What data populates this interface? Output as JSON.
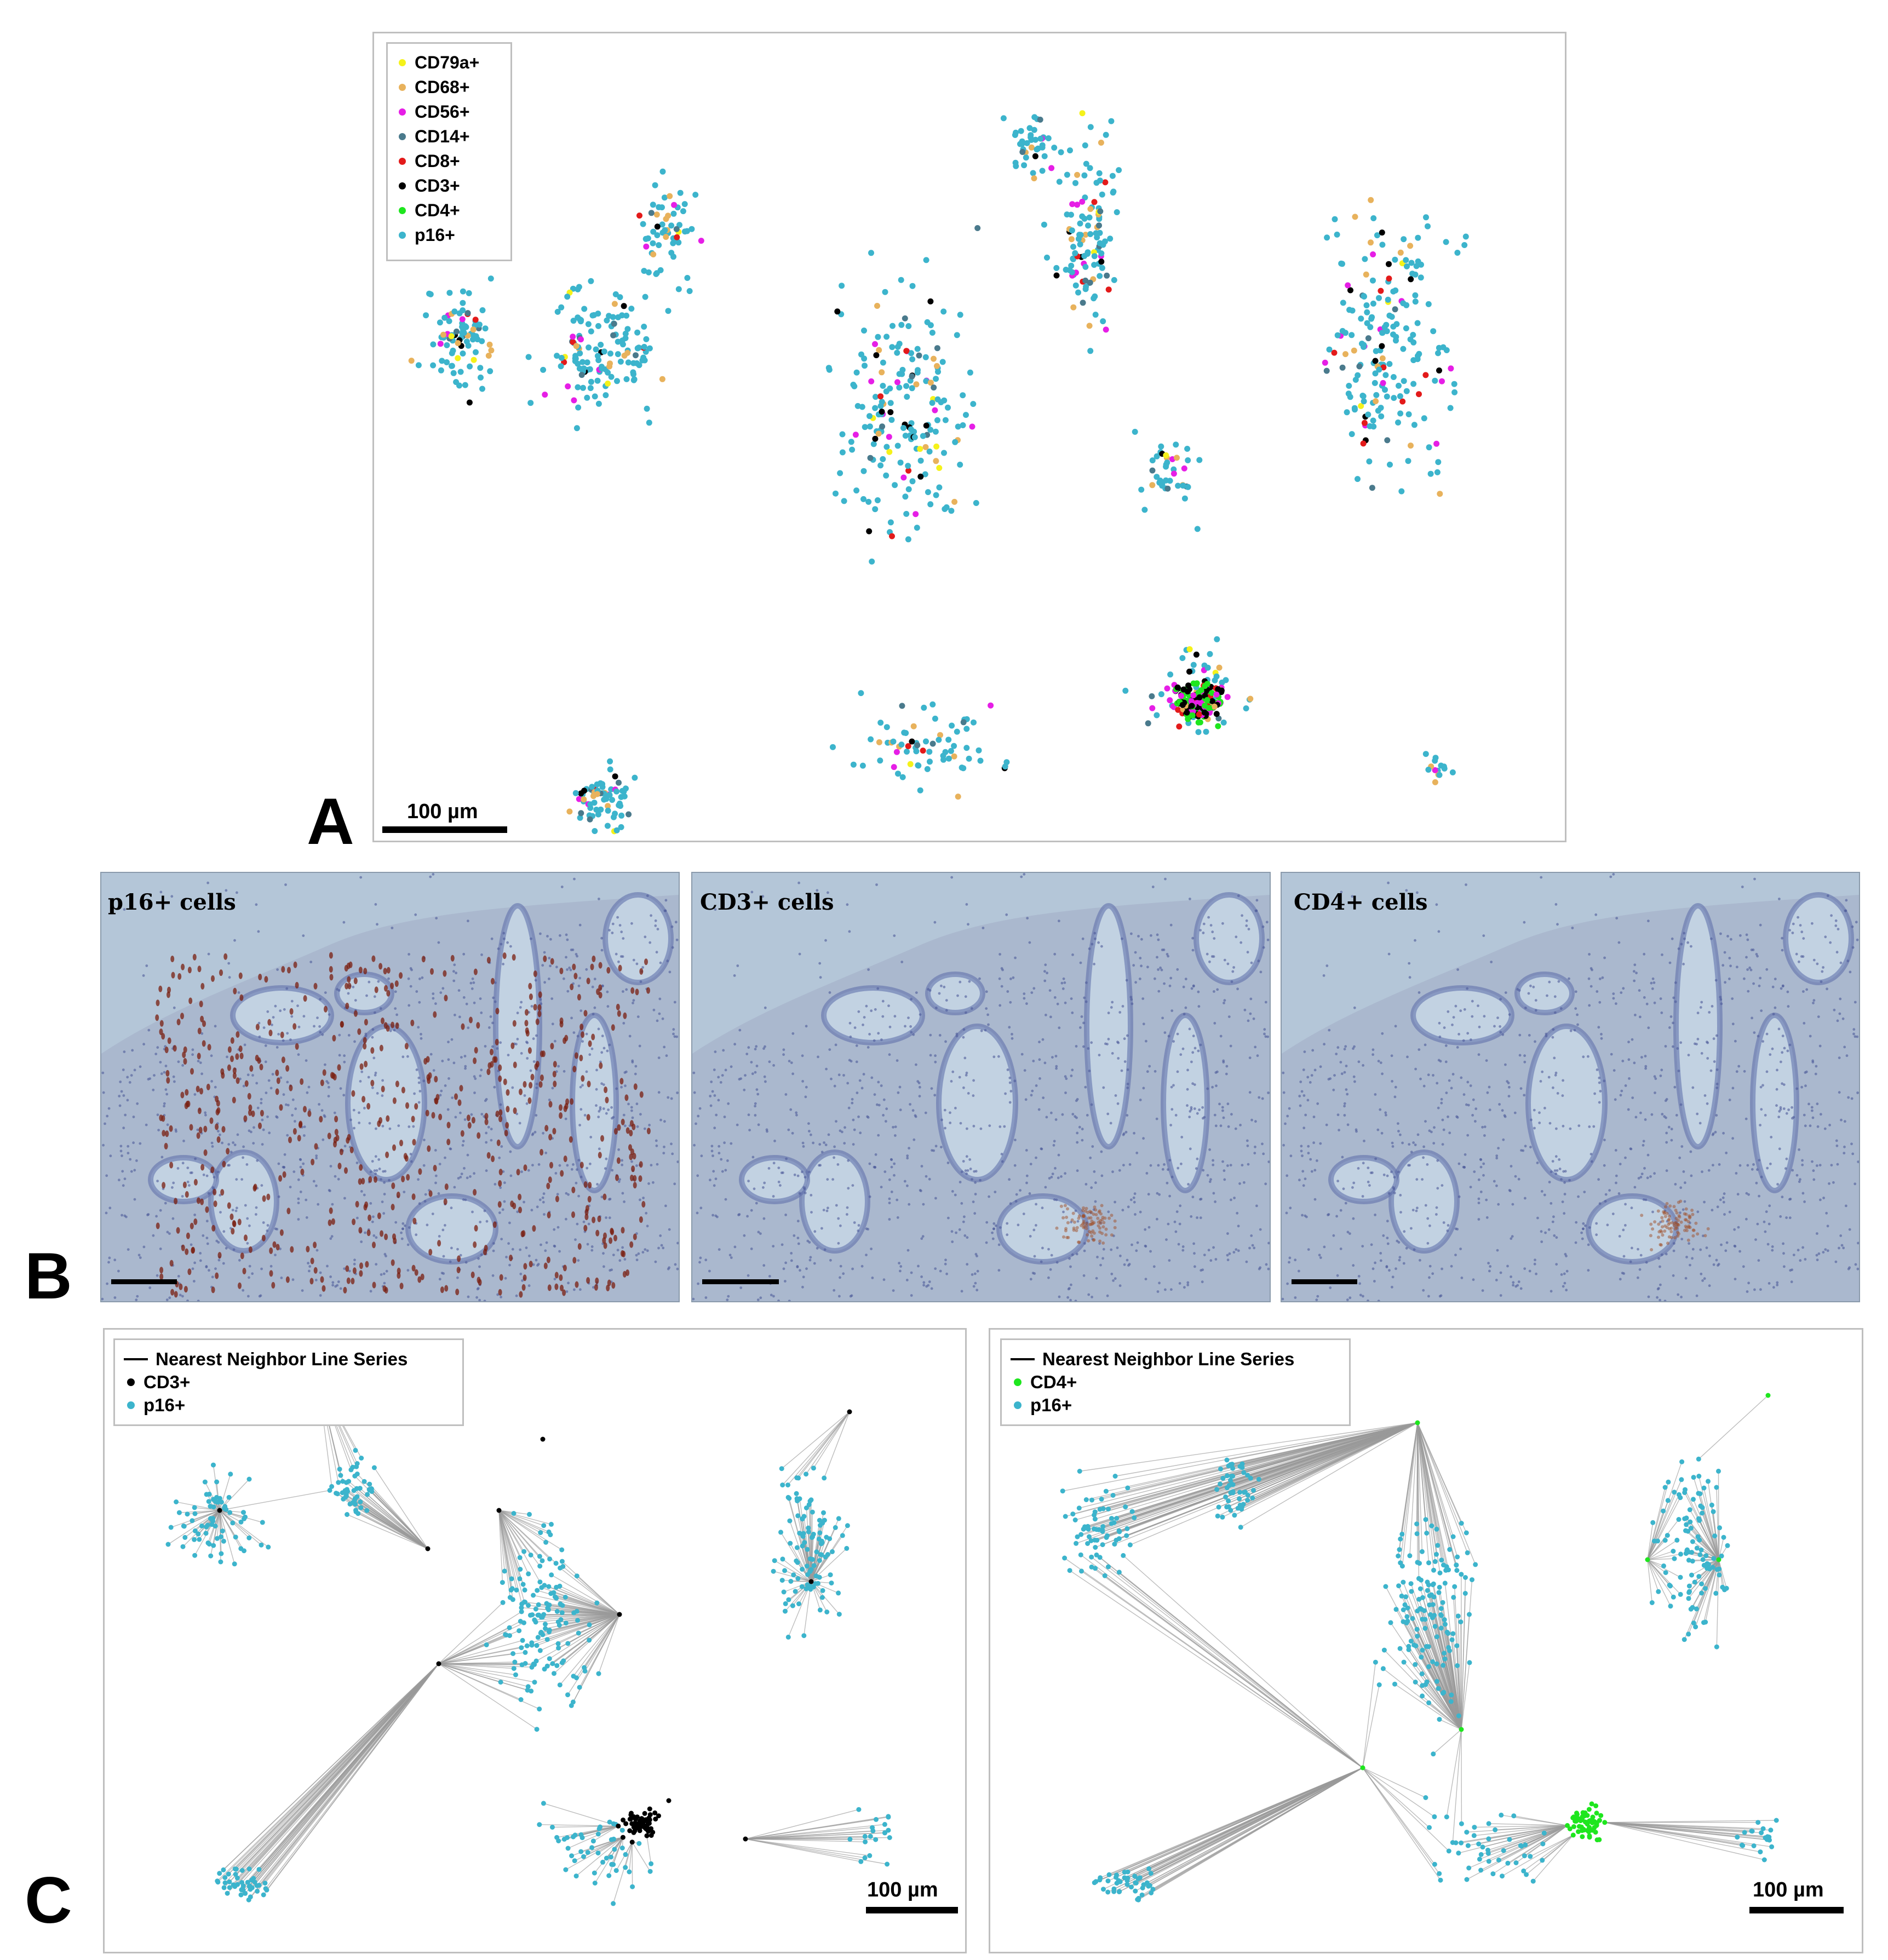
{
  "panel_a": {
    "letter": "A",
    "legend": [
      {
        "label": "CD79a+",
        "color": "#f5f21a"
      },
      {
        "label": "CD68+",
        "color": "#e8b25c"
      },
      {
        "label": "CD56+",
        "color": "#e61ee6"
      },
      {
        "label": "CD14+",
        "color": "#4a7a8c"
      },
      {
        "label": "CD8+",
        "color": "#e31a1a"
      },
      {
        "label": "CD3+",
        "color": "#000000"
      },
      {
        "label": "CD4+",
        "color": "#1ee61e"
      },
      {
        "label": "p16+",
        "color": "#3cb4cc"
      }
    ],
    "scale_label": "100 µm"
  },
  "panel_b": {
    "letter": "B",
    "images": [
      {
        "label": "p16+ cells"
      },
      {
        "label": "CD3+ cells"
      },
      {
        "label": "CD4+ cells"
      }
    ]
  },
  "panel_c": {
    "letter": "C",
    "left": {
      "legend": [
        {
          "label": "Nearest Neighbor Line Series",
          "kind": "line",
          "color": "#000000"
        },
        {
          "label": "CD3+",
          "kind": "dot",
          "color": "#000000"
        },
        {
          "label": "p16+",
          "kind": "dot",
          "color": "#3cb4cc"
        }
      ],
      "scale_label": "100 µm"
    },
    "right": {
      "legend": [
        {
          "label": "Nearest Neighbor Line Series",
          "kind": "line",
          "color": "#000000"
        },
        {
          "label": "CD4+",
          "kind": "dot",
          "color": "#1ee61e"
        },
        {
          "label": "p16+",
          "kind": "dot",
          "color": "#3cb4cc"
        }
      ],
      "scale_label": "100 µm"
    }
  }
}
